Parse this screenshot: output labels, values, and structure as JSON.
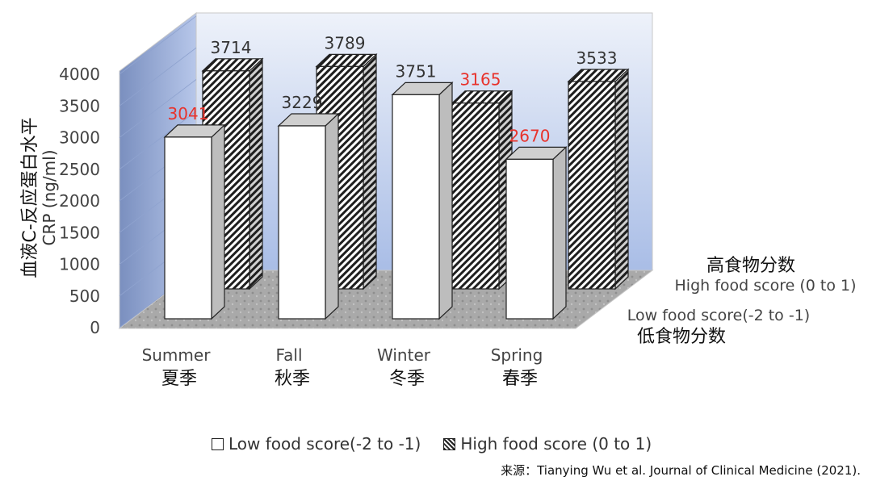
{
  "chart_data": {
    "type": "bar",
    "view": "3d-clustered-depth",
    "categories": [
      "Summer",
      "Fall",
      "Winter",
      "Spring"
    ],
    "categories_zh": [
      "夏季",
      "秋季",
      "冬季",
      "春季"
    ],
    "series": [
      {
        "name": "Low food score(-2 to -1)",
        "name_zh": "低食物分数",
        "values": [
          3041,
          3229,
          3751,
          2670
        ],
        "label_colors": [
          "#e8322b",
          "#333333",
          "#333333",
          "#e8322b"
        ],
        "fill": "white"
      },
      {
        "name": "High food score (0 to 1)",
        "name_zh": "高食物分数",
        "values": [
          3714,
          3789,
          3165,
          3533
        ],
        "label_colors": [
          "#333333",
          "#333333",
          "#e8322b",
          "#333333"
        ],
        "fill": "hatched"
      }
    ],
    "ylabel_zh": "血液C-反应蛋白水平",
    "ylabel": "CRP (ng/ml)",
    "yticks": [
      0,
      500,
      1000,
      1500,
      2000,
      2500,
      3000,
      3500,
      4000
    ],
    "ylim": [
      0,
      4000
    ],
    "grid": false,
    "legend_position": "bottom",
    "colors": {
      "label_highlight": "#e8322b",
      "label_normal": "#333333",
      "back_wall": "#c9d6ee"
    }
  },
  "source": "来源：Tianying Wu et al. Journal of Clinical Medicine (2021)."
}
